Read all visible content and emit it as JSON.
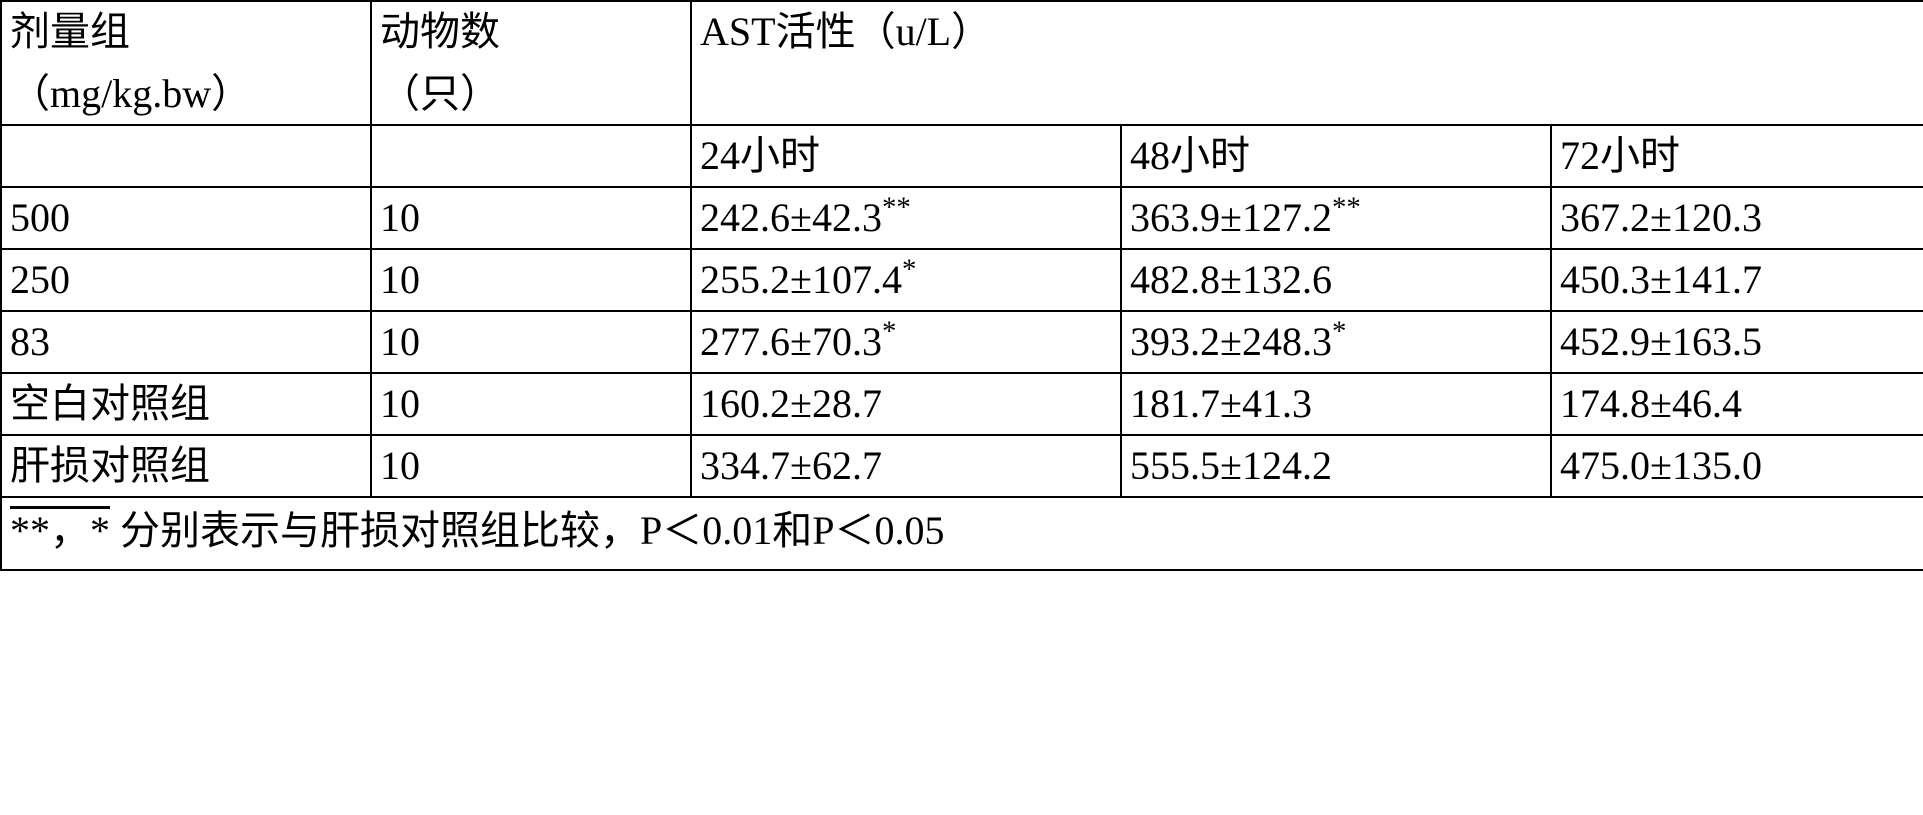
{
  "table": {
    "type": "table",
    "border_color": "#000000",
    "background_color": "#ffffff",
    "font_family": "SimSun",
    "font_size_pt": 30,
    "header": {
      "dose_line1": "剂量组",
      "dose_line2": "（mg/kg.bw）",
      "animal_line1": "动物数",
      "animal_line2": "（只）",
      "ast_header": "AST活性（u/L）",
      "time_24h": "24小时",
      "time_48h": "48小时",
      "time_72h": "72小时"
    },
    "rows": [
      {
        "dose": "500",
        "n": "10",
        "t24": {
          "val": "242.6±42.3",
          "sig": "**"
        },
        "t48": {
          "val": "363.9±127.2",
          "sig": "**"
        },
        "t72": {
          "val": "367.2±120.3",
          "sig": ""
        }
      },
      {
        "dose": "250",
        "n": "10",
        "t24": {
          "val": "255.2±107.4",
          "sig": "*"
        },
        "t48": {
          "val": "482.8±132.6",
          "sig": ""
        },
        "t72": {
          "val": "450.3±141.7",
          "sig": ""
        }
      },
      {
        "dose": "83",
        "n": "10",
        "t24": {
          "val": "277.6±70.3",
          "sig": "*"
        },
        "t48": {
          "val": "393.2±248.3",
          "sig": "*"
        },
        "t72": {
          "val": "452.9±163.5",
          "sig": ""
        }
      },
      {
        "dose": "空白对照组",
        "n": "10",
        "t24": {
          "val": "160.2±28.7",
          "sig": ""
        },
        "t48": {
          "val": "181.7±41.3",
          "sig": ""
        },
        "t72": {
          "val": "174.8±46.4",
          "sig": ""
        }
      },
      {
        "dose": "肝损对照组",
        "n": "10",
        "t24": {
          "val": "334.7±62.7",
          "sig": ""
        },
        "t48": {
          "val": "555.5±124.2",
          "sig": ""
        },
        "t72": {
          "val": "475.0±135.0",
          "sig": ""
        }
      }
    ],
    "footnote": {
      "stars": "**，*",
      "text": "  分别表示与肝损对照组比较，P＜0.01和P＜0.05"
    }
  }
}
